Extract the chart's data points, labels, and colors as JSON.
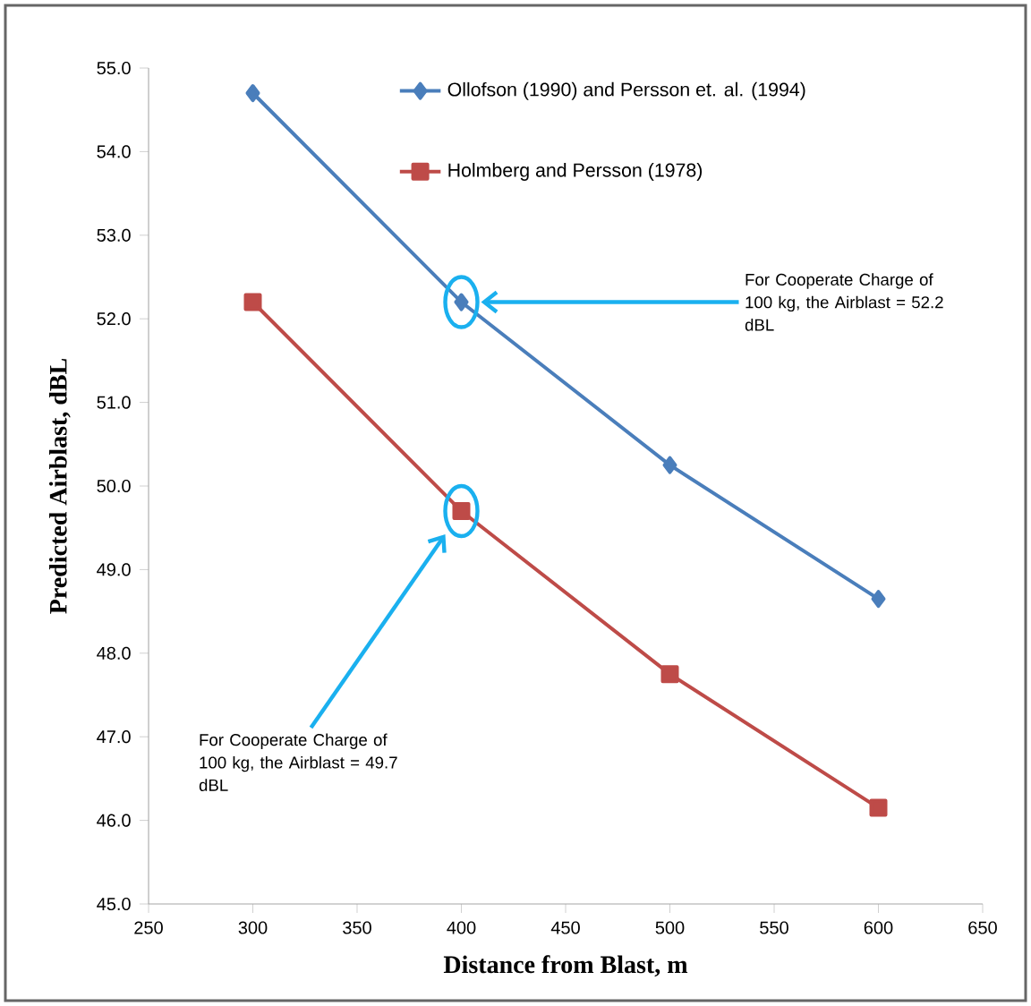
{
  "chart_data": {
    "type": "line",
    "xlabel": "Distance from Blast, m",
    "ylabel": "Predicted Airblast, dBL",
    "x": [
      300,
      400,
      500,
      600
    ],
    "series": [
      {
        "name": "Ollofson (1990) and Persson et. al. (1994)",
        "color": "#4a7ebb",
        "marker": "diamond",
        "values": [
          54.7,
          52.2,
          50.25,
          48.65
        ]
      },
      {
        "name": "Holmberg and Persson (1978)",
        "color": "#be4b48",
        "marker": "square",
        "values": [
          52.2,
          49.7,
          47.75,
          46.15
        ]
      }
    ],
    "xlim": [
      250,
      650
    ],
    "xticks": [
      250,
      300,
      350,
      400,
      450,
      500,
      550,
      600,
      650
    ],
    "ylim": [
      45,
      55
    ],
    "yticks": [
      {
        "value": 45,
        "label": "45.0"
      },
      {
        "value": 46,
        "label": "46.0"
      },
      {
        "value": 47,
        "label": "47.0"
      },
      {
        "value": 48,
        "label": "48.0"
      },
      {
        "value": 49,
        "label": "49.0"
      },
      {
        "value": 50,
        "label": "50.0"
      },
      {
        "value": 51,
        "label": "51.0"
      },
      {
        "value": 52,
        "label": "52.0"
      },
      {
        "value": 53,
        "label": "53.0"
      },
      {
        "value": 54,
        "label": "54.0"
      },
      {
        "value": 55,
        "label": "55.0"
      }
    ],
    "annotations": [
      "For Cooperate Charge of 100 kg, the Airblast = 52.2 dBL",
      "For Cooperate Charge of 100 kg, the Airblast = 49.7 dBL"
    ],
    "legend": "top",
    "line_style": "solid"
  }
}
